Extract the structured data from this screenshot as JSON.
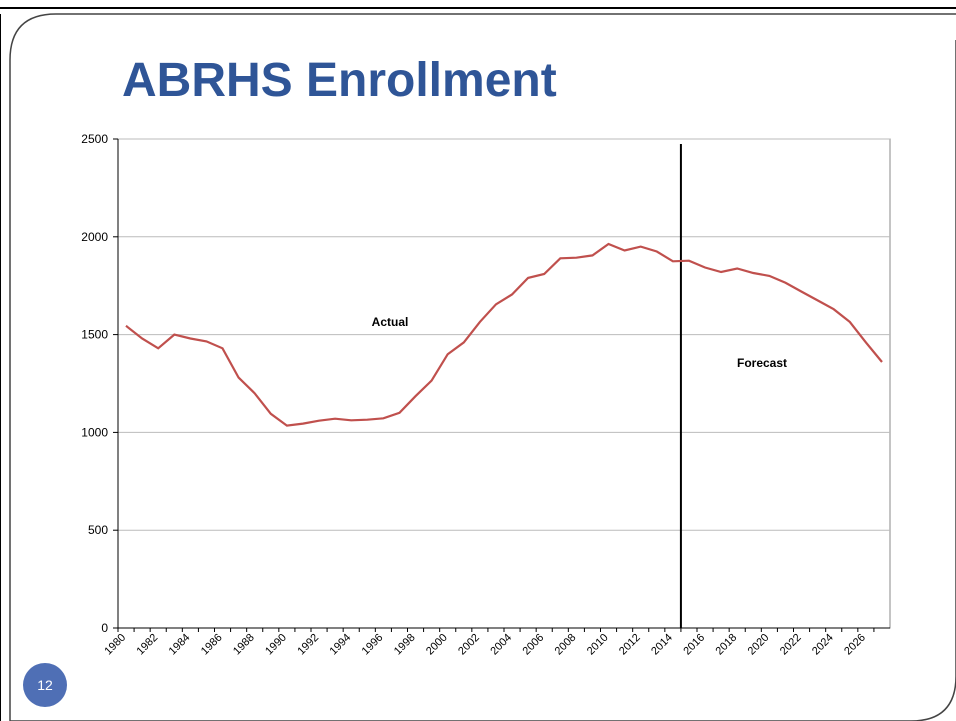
{
  "slide": {
    "page_number": "12"
  },
  "chart_data": {
    "type": "line",
    "title": "ABRHS Enrollment",
    "categories": [
      "1980",
      null,
      "1982",
      null,
      "1984",
      null,
      "1986",
      null,
      "1988",
      null,
      "1990",
      null,
      "1992",
      null,
      "1994",
      null,
      "1996",
      null,
      "1998",
      null,
      "2000",
      null,
      "2002",
      null,
      "2004",
      null,
      "2006",
      null,
      "2008",
      null,
      "2010",
      null,
      "2012",
      null,
      "2014",
      null,
      "2016",
      null,
      "2018",
      null,
      "2020",
      null,
      "2022",
      null,
      "2024",
      null,
      "2026",
      null
    ],
    "values": [
      1545,
      1480,
      1430,
      1500,
      1480,
      1465,
      1430,
      1280,
      1200,
      1095,
      1035,
      1045,
      1060,
      1070,
      1062,
      1065,
      1072,
      1100,
      1185,
      1265,
      1400,
      1460,
      1565,
      1655,
      1705,
      1790,
      1810,
      1890,
      1893,
      1905,
      1963,
      1930,
      1950,
      1925,
      1875,
      1878,
      1843,
      1820,
      1838,
      1815,
      1800,
      1765,
      1720,
      1675,
      1630,
      1565,
      1460,
      1360
    ],
    "color": "#c0504d",
    "ylim": [
      0,
      2500
    ],
    "yticks": [
      0,
      500,
      1000,
      1500,
      2000,
      2500
    ],
    "grid": true,
    "annotations": [
      "Actual",
      "Forecast"
    ]
  }
}
